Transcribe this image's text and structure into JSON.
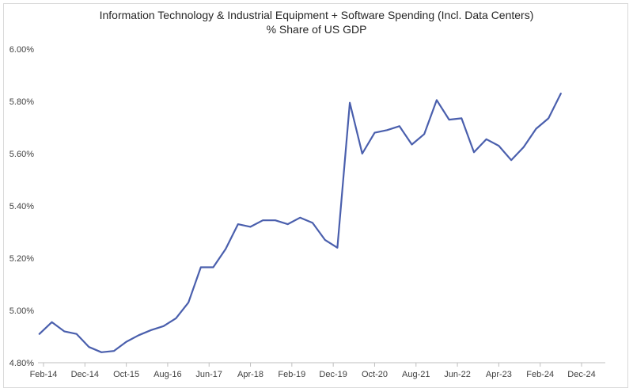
{
  "chart_data": {
    "type": "line",
    "title": "Information Technology & Industrial Equipment + Software Spending (Incl. Data Centers)",
    "subtitle": "% Share of US GDP",
    "xlabel": "",
    "ylabel": "",
    "ylim": [
      4.8,
      6.0
    ],
    "y_ticks": [
      "4.80%",
      "5.00%",
      "5.20%",
      "5.40%",
      "5.60%",
      "5.80%",
      "6.00%"
    ],
    "x_ticks": [
      "Feb-14",
      "Dec-14",
      "Oct-15",
      "Aug-16",
      "Jun-17",
      "Apr-18",
      "Feb-19",
      "Dec-19",
      "Oct-20",
      "Aug-21",
      "Jun-22",
      "Apr-23",
      "Feb-24",
      "Dec-24"
    ],
    "grid": false,
    "color": "#4a5fad",
    "series": [
      {
        "x": [
          "2014-01",
          "2014-04",
          "2014-07",
          "2014-10",
          "2015-01",
          "2015-04",
          "2015-07",
          "2015-10",
          "2016-01",
          "2016-04",
          "2016-07",
          "2016-10",
          "2017-01",
          "2017-04",
          "2017-07",
          "2017-10",
          "2018-01",
          "2018-04",
          "2018-07",
          "2018-10",
          "2019-01",
          "2019-04",
          "2019-07",
          "2019-10",
          "2020-01",
          "2020-04",
          "2020-07",
          "2020-10",
          "2021-01",
          "2021-04",
          "2021-07",
          "2021-10",
          "2022-01",
          "2022-04",
          "2022-07",
          "2022-10",
          "2023-01",
          "2023-04",
          "2023-07",
          "2023-10",
          "2024-01",
          "2024-04",
          "2024-07"
        ],
        "values": [
          4.91,
          4.955,
          4.92,
          4.91,
          4.86,
          4.84,
          4.845,
          4.88,
          4.905,
          4.925,
          4.94,
          4.97,
          5.03,
          5.165,
          5.165,
          5.235,
          5.33,
          5.32,
          5.345,
          5.345,
          5.33,
          5.355,
          5.335,
          5.27,
          5.24,
          5.795,
          5.6,
          5.68,
          5.69,
          5.705,
          5.635,
          5.675,
          5.805,
          5.73,
          5.735,
          5.605,
          5.655,
          5.63,
          5.575,
          5.625,
          5.695,
          5.735,
          5.83
        ]
      }
    ]
  }
}
